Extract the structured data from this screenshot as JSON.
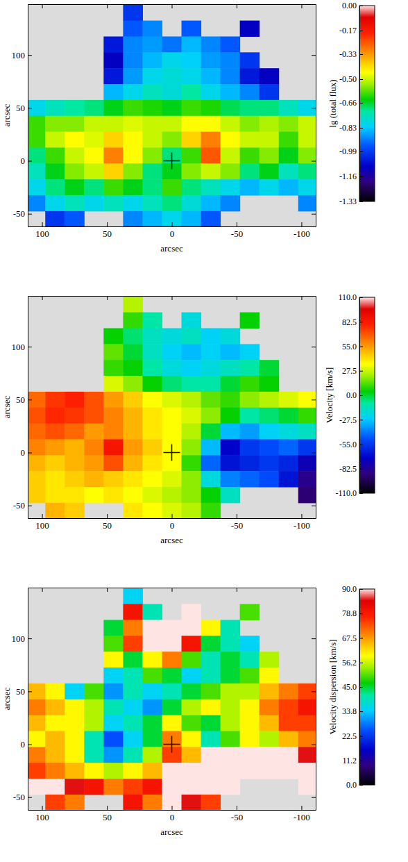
{
  "chart_data": [
    {
      "type": "heatmap",
      "xlabel": "arcsec",
      "ylabel": "arcsec",
      "xlim": [
        111,
        -111
      ],
      "ylim": [
        -62,
        148
      ],
      "xticks": [
        100,
        50,
        0,
        -50,
        -100
      ],
      "yticks": [
        -50,
        0,
        50,
        100
      ],
      "center": {
        "x": 0,
        "y": 0
      },
      "x": [
        105,
        90,
        75,
        60,
        45,
        30,
        15,
        0,
        -15,
        -30,
        -45,
        -60,
        -75,
        -90,
        -105
      ],
      "y": [
        140,
        125,
        110,
        95,
        80,
        65,
        50,
        35,
        20,
        5,
        -10,
        -25,
        -40,
        -55
      ],
      "cells": [
        [
          null,
          null,
          null,
          null,
          null,
          -1.0,
          null,
          null,
          null,
          null,
          null,
          null,
          null,
          null,
          null
        ],
        [
          null,
          null,
          null,
          null,
          null,
          -0.95,
          -0.9,
          null,
          -0.95,
          null,
          null,
          -1.1,
          null,
          null,
          null
        ],
        [
          null,
          null,
          null,
          null,
          -1.05,
          -0.9,
          -0.88,
          -0.92,
          -0.85,
          -0.9,
          -0.95,
          null,
          null,
          null,
          null
        ],
        [
          null,
          null,
          null,
          null,
          -1.1,
          -0.9,
          -0.85,
          -0.8,
          -0.82,
          -0.88,
          -0.9,
          -1.0,
          null,
          null,
          null
        ],
        [
          null,
          null,
          null,
          null,
          -1.05,
          -0.88,
          -0.8,
          -0.78,
          -0.8,
          -0.85,
          -0.9,
          -1.05,
          -1.1,
          null,
          null
        ],
        [
          null,
          null,
          null,
          null,
          -0.85,
          -0.8,
          -0.75,
          -0.78,
          -0.72,
          -0.8,
          -0.85,
          -0.9,
          -1.0,
          null,
          null
        ],
        [
          -0.8,
          -0.75,
          -0.72,
          -0.7,
          -0.65,
          -0.6,
          -0.62,
          -0.65,
          -0.6,
          -0.62,
          -0.68,
          -0.7,
          -0.7,
          -0.75,
          -0.8
        ],
        [
          -0.6,
          -0.55,
          -0.55,
          -0.5,
          -0.5,
          -0.48,
          -0.5,
          -0.5,
          -0.45,
          -0.45,
          -0.5,
          -0.55,
          -0.52,
          -0.55,
          -0.5
        ],
        [
          -0.6,
          -0.5,
          -0.45,
          -0.48,
          -0.4,
          -0.45,
          -0.5,
          -0.55,
          -0.4,
          -0.3,
          -0.45,
          -0.5,
          -0.5,
          -0.6,
          -0.5
        ],
        [
          -0.7,
          -0.6,
          -0.5,
          -0.45,
          -0.3,
          -0.45,
          -0.55,
          -0.7,
          -0.6,
          -0.25,
          -0.5,
          -0.6,
          -0.55,
          -0.65,
          -0.55
        ],
        [
          -0.75,
          -0.65,
          -0.55,
          -0.5,
          -0.4,
          -0.55,
          -0.7,
          -0.65,
          -0.55,
          -0.5,
          -0.55,
          -0.7,
          -0.65,
          -0.75,
          -0.7
        ],
        [
          -0.8,
          -0.7,
          -0.65,
          -0.7,
          -0.6,
          -0.65,
          -0.7,
          -0.6,
          -0.7,
          -0.75,
          -0.8,
          -0.85,
          -0.8,
          -0.85,
          -0.8
        ],
        [
          -0.9,
          -0.8,
          -0.75,
          -0.8,
          -0.75,
          -0.8,
          -0.75,
          -0.7,
          -0.78,
          -0.85,
          -0.9,
          null,
          null,
          null,
          -0.9
        ],
        [
          null,
          -1.0,
          -0.95,
          null,
          null,
          -0.9,
          -0.85,
          -0.8,
          -0.85,
          -0.95,
          null,
          null,
          null,
          null,
          null
        ]
      ],
      "colorbar": {
        "label": "lg (total flux)",
        "lim": [
          -1.33,
          0
        ],
        "ticks": [
          {
            "value": 0,
            "label": "0.00"
          },
          {
            "value": -0.17,
            "label": "-0.17"
          },
          {
            "value": -0.33,
            "label": "-0.33"
          },
          {
            "value": -0.5,
            "label": "-0.50"
          },
          {
            "value": -0.66,
            "label": "-0.66"
          },
          {
            "value": -0.83,
            "label": "-0.83"
          },
          {
            "value": -0.99,
            "label": "-0.99"
          },
          {
            "value": -1.16,
            "label": "-1.16"
          },
          {
            "value": -1.33,
            "label": "-1.33"
          }
        ]
      }
    },
    {
      "type": "heatmap",
      "xlabel": "arcsec",
      "ylabel": "arcsec",
      "xlim": [
        111,
        -111
      ],
      "ylim": [
        -62,
        148
      ],
      "xticks": [
        100,
        50,
        0,
        -50,
        -100
      ],
      "yticks": [
        -50,
        0,
        50,
        100
      ],
      "center": {
        "x": 0,
        "y": 0
      },
      "x": [
        105,
        90,
        75,
        60,
        45,
        30,
        15,
        0,
        -15,
        -30,
        -45,
        -60,
        -75,
        -90,
        -105
      ],
      "y": [
        140,
        125,
        110,
        95,
        80,
        65,
        50,
        35,
        20,
        5,
        -10,
        -25,
        -40,
        -55
      ],
      "cells": [
        [
          null,
          null,
          null,
          null,
          null,
          25,
          null,
          null,
          null,
          null,
          null,
          null,
          null,
          null,
          null
        ],
        [
          null,
          null,
          null,
          null,
          null,
          10,
          -10,
          null,
          -20,
          null,
          null,
          5,
          null,
          null,
          null
        ],
        [
          null,
          null,
          null,
          null,
          5,
          -5,
          -15,
          -20,
          -15,
          -25,
          -20,
          null,
          null,
          null,
          null
        ],
        [
          null,
          null,
          null,
          null,
          15,
          0,
          -15,
          -25,
          -30,
          -25,
          -30,
          -25,
          null,
          null,
          null
        ],
        [
          null,
          null,
          null,
          null,
          10,
          5,
          -10,
          -20,
          -25,
          -20,
          -15,
          -10,
          0,
          null,
          null
        ],
        [
          null,
          null,
          null,
          null,
          30,
          20,
          5,
          -5,
          -10,
          -10,
          0,
          10,
          5,
          null,
          null
        ],
        [
          65,
          75,
          80,
          70,
          55,
          45,
          35,
          30,
          25,
          15,
          10,
          20,
          25,
          30,
          35
        ],
        [
          70,
          78,
          75,
          70,
          60,
          50,
          40,
          35,
          30,
          20,
          5,
          -10,
          -5,
          0,
          10
        ],
        [
          65,
          70,
          65,
          55,
          60,
          50,
          40,
          35,
          25,
          0,
          -30,
          -35,
          -25,
          -20,
          -15
        ],
        [
          60,
          55,
          50,
          60,
          85,
          55,
          45,
          35,
          20,
          -30,
          -70,
          -55,
          -50,
          -45,
          -55
        ],
        [
          50,
          45,
          50,
          55,
          70,
          50,
          40,
          35,
          10,
          -45,
          -65,
          -60,
          -55,
          -60,
          -75
        ],
        [
          45,
          40,
          45,
          50,
          45,
          40,
          35,
          30,
          20,
          -20,
          -40,
          -45,
          -50,
          -65,
          -85
        ],
        [
          45,
          40,
          40,
          35,
          40,
          35,
          30,
          25,
          20,
          5,
          -15,
          null,
          null,
          null,
          -90
        ],
        [
          null,
          50,
          45,
          null,
          null,
          40,
          35,
          30,
          25,
          10,
          null,
          null,
          null,
          null,
          null
        ]
      ],
      "colorbar": {
        "label": "Velocity [km/s]",
        "lim": [
          -110,
          110
        ],
        "ticks": [
          {
            "value": 110,
            "label": "110.0"
          },
          {
            "value": 82.5,
            "label": "82.5"
          },
          {
            "value": 55,
            "label": "55.0"
          },
          {
            "value": 27.5,
            "label": "27.5"
          },
          {
            "value": 0,
            "label": "0.0"
          },
          {
            "value": -27.5,
            "label": "-27.5"
          },
          {
            "value": -55,
            "label": "-55.0"
          },
          {
            "value": -82.5,
            "label": "-82.5"
          },
          {
            "value": -110,
            "label": "-110.0"
          }
        ]
      }
    },
    {
      "type": "heatmap",
      "xlabel": "arcsec",
      "ylabel": "arcsec",
      "xlim": [
        111,
        -111
      ],
      "ylim": [
        -62,
        148
      ],
      "xticks": [
        100,
        50,
        0,
        -50,
        -100
      ],
      "yticks": [
        -50,
        0,
        50,
        100
      ],
      "center": {
        "x": 0,
        "y": 0
      },
      "x": [
        105,
        90,
        75,
        60,
        45,
        30,
        15,
        0,
        -15,
        -30,
        -45,
        -60,
        -75,
        -90,
        -105
      ],
      "y": [
        140,
        125,
        110,
        95,
        80,
        65,
        50,
        35,
        20,
        5,
        -10,
        -25,
        -40,
        -55
      ],
      "cells": [
        [
          null,
          null,
          null,
          null,
          null,
          35,
          null,
          null,
          null,
          null,
          null,
          null,
          null,
          null,
          null
        ],
        [
          null,
          null,
          null,
          null,
          null,
          80,
          40,
          null,
          90,
          null,
          null,
          50,
          null,
          null,
          null
        ],
        [
          null,
          null,
          null,
          null,
          45,
          70,
          90,
          90,
          90,
          60,
          40,
          null,
          null,
          null,
          null
        ],
        [
          null,
          null,
          null,
          null,
          50,
          75,
          90,
          90,
          80,
          45,
          40,
          35,
          null,
          null,
          null
        ],
        [
          null,
          null,
          null,
          null,
          60,
          45,
          60,
          70,
          50,
          40,
          45,
          40,
          55,
          null,
          null
        ],
        [
          null,
          null,
          null,
          null,
          35,
          40,
          50,
          45,
          35,
          40,
          45,
          50,
          60,
          null,
          null
        ],
        [
          65,
          60,
          35,
          50,
          30,
          40,
          35,
          40,
          45,
          50,
          55,
          55,
          65,
          70,
          75
        ],
        [
          70,
          65,
          60,
          55,
          40,
          35,
          30,
          45,
          55,
          60,
          55,
          60,
          70,
          75,
          80
        ],
        [
          65,
          60,
          60,
          55,
          35,
          40,
          45,
          60,
          50,
          45,
          55,
          60,
          65,
          75,
          75
        ],
        [
          60,
          65,
          60,
          40,
          25,
          35,
          45,
          70,
          60,
          40,
          50,
          60,
          55,
          65,
          70
        ],
        [
          70,
          65,
          60,
          40,
          30,
          40,
          55,
          75,
          65,
          90,
          90,
          90,
          90,
          90,
          85
        ],
        [
          75,
          70,
          65,
          60,
          55,
          60,
          65,
          90,
          90,
          90,
          90,
          90,
          90,
          90,
          90
        ],
        [
          90,
          90,
          85,
          80,
          70,
          75,
          80,
          90,
          90,
          90,
          90,
          null,
          null,
          null,
          90
        ],
        [
          null,
          75,
          70,
          null,
          null,
          80,
          70,
          90,
          85,
          75,
          null,
          null,
          null,
          null,
          null
        ]
      ],
      "colorbar": {
        "label": "Velocity dispersion [km/s]",
        "lim": [
          0,
          90
        ],
        "ticks": [
          {
            "value": 90,
            "label": "90.0"
          },
          {
            "value": 78.8,
            "label": "78.8"
          },
          {
            "value": 67.5,
            "label": "67.5"
          },
          {
            "value": 56.2,
            "label": "56.2"
          },
          {
            "value": 45,
            "label": "45.0"
          },
          {
            "value": 33.8,
            "label": "33.8"
          },
          {
            "value": 22.5,
            "label": "22.5"
          },
          {
            "value": 11.2,
            "label": "11.2"
          },
          {
            "value": 0,
            "label": "0.0"
          }
        ]
      }
    }
  ]
}
